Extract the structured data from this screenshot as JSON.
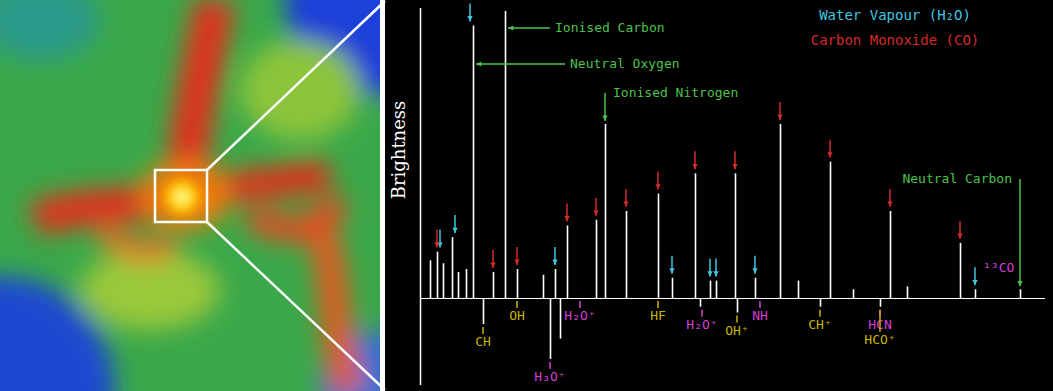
{
  "chart_data": {
    "type": "spectrum",
    "y_label": "Brightness",
    "xlim": [
      0,
      625
    ],
    "ylim": [
      -30,
      100
    ],
    "tick_labels": false,
    "color": "#ffffff",
    "x": [
      10,
      17,
      23,
      32,
      38,
      46,
      53,
      63,
      73,
      85,
      97,
      123,
      130,
      135,
      140,
      147,
      176,
      185,
      206,
      238,
      252,
      275,
      280,
      290,
      296,
      315,
      317,
      335,
      360,
      378,
      400,
      410,
      433,
      460,
      470,
      487,
      540,
      555,
      600
    ],
    "values": [
      13,
      16,
      12,
      21,
      9,
      10,
      94,
      -9,
      9,
      99,
      10,
      8,
      -21,
      10,
      -14,
      25,
      27,
      60,
      30,
      36,
      7,
      43,
      -3,
      6,
      6,
      43,
      -5,
      7,
      60,
      6,
      -3,
      47,
      3,
      -3,
      30,
      4,
      19,
      3,
      3
    ],
    "legend": "top-right",
    "series": [
      {
        "name": "Water Vapour (H₂O)",
        "color": "#3fc6e0",
        "marker": "arrow",
        "x": [
          20,
          35,
          50,
          135,
          252,
          290,
          296,
          335,
          555
        ]
      },
      {
        "name": "Carbon Monoxide (CO)",
        "color": "#d42a2a",
        "marker": "arrow",
        "x": [
          17,
          73,
          97,
          147,
          176,
          206,
          238,
          275,
          315,
          360,
          410,
          470,
          540
        ]
      }
    ],
    "annotations": [
      {
        "text": "Ionised Carbon",
        "x": 85,
        "color": "#4cc24c"
      },
      {
        "text": "Neutral Oxygen",
        "x": 53,
        "color": "#4cc24c"
      },
      {
        "text": "Ionised Nitrogen",
        "x": 185,
        "color": "#4cc24c"
      },
      {
        "text": "Neutral Carbon",
        "x": 600,
        "color": "#4cc24c"
      },
      {
        "text": "¹³CO",
        "x": 555,
        "color": "#d63fd6"
      }
    ],
    "line_labels": [
      {
        "text": "CH",
        "x": 63,
        "color": "#c8b400"
      },
      {
        "text": "OH",
        "x": 97,
        "color": "#c8b400"
      },
      {
        "text": "H₃O⁺",
        "x": 130,
        "color": "#d63fd6"
      },
      {
        "text": "H₂O⁺",
        "x": 160,
        "color": "#d63fd6"
      },
      {
        "text": "HF",
        "x": 238,
        "color": "#c8b400"
      },
      {
        "text": "H₂O⁺",
        "x": 282,
        "color": "#d63fd6"
      },
      {
        "text": "OH⁺",
        "x": 317,
        "color": "#c8b400"
      },
      {
        "text": "NH",
        "x": 340,
        "color": "#d63fd6"
      },
      {
        "text": "CH⁺",
        "x": 400,
        "color": "#c8b400"
      },
      {
        "text": "HCN",
        "x": 460,
        "color": "#d63fd6"
      },
      {
        "text": "HCO⁺",
        "x": 460,
        "color": "#c8b400"
      }
    ]
  }
}
